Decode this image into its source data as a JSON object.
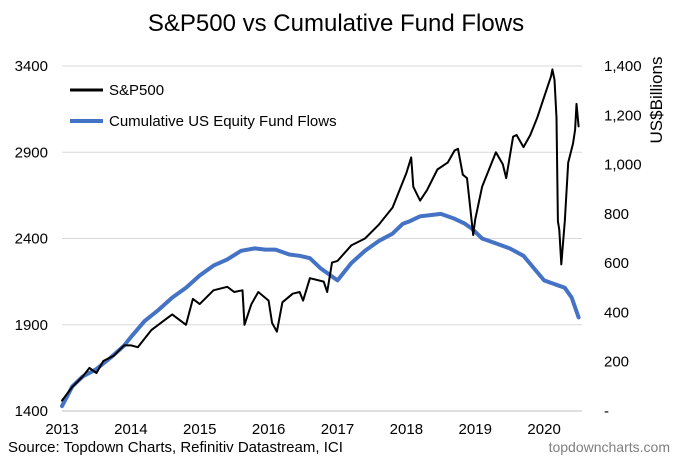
{
  "chart_data": {
    "type": "line",
    "title": "S&P500 vs Cumulative Fund Flows",
    "x": {
      "min": 2013.0,
      "max": 2020.55,
      "ticks": [
        2013,
        2014,
        2015,
        2016,
        2017,
        2018,
        2019,
        2020
      ],
      "tick_labels": [
        "2013",
        "2014",
        "2015",
        "2016",
        "2017",
        "2018",
        "2019",
        "2020"
      ]
    },
    "y_left": {
      "label": "",
      "min": 1400,
      "max": 3400,
      "ticks": [
        1400,
        1900,
        2400,
        2900,
        3400
      ],
      "tick_labels": [
        "1400",
        "1900",
        "2400",
        "2900",
        "3400"
      ]
    },
    "y_right": {
      "label": "US$Billions",
      "min": 0,
      "max": 1400,
      "ticks": [
        0,
        200,
        400,
        600,
        800,
        1000,
        1200,
        1400
      ],
      "tick_labels": [
        "-",
        "200",
        "400",
        "600",
        "800",
        "1,000",
        "1,200",
        "1,400"
      ]
    },
    "grid": true,
    "legend_position": "top-left",
    "series": [
      {
        "name": "S&P500",
        "axis": "left",
        "color": "#000000",
        "x": [
          2013.0,
          2013.15,
          2013.3,
          2013.4,
          2013.5,
          2013.6,
          2013.75,
          2013.9,
          2014.0,
          2014.1,
          2014.3,
          2014.5,
          2014.6,
          2014.8,
          2014.9,
          2015.0,
          2015.2,
          2015.4,
          2015.5,
          2015.62,
          2015.65,
          2015.75,
          2015.85,
          2016.0,
          2016.05,
          2016.12,
          2016.2,
          2016.35,
          2016.45,
          2016.5,
          2016.6,
          2016.8,
          2016.85,
          2016.92,
          2017.0,
          2017.2,
          2017.4,
          2017.6,
          2017.8,
          2018.0,
          2018.07,
          2018.1,
          2018.2,
          2018.3,
          2018.45,
          2018.6,
          2018.7,
          2018.75,
          2018.82,
          2018.88,
          2018.97,
          2019.0,
          2019.1,
          2019.2,
          2019.3,
          2019.4,
          2019.45,
          2019.55,
          2019.6,
          2019.7,
          2019.8,
          2019.9,
          2020.0,
          2020.1,
          2020.12,
          2020.15,
          2020.18,
          2020.2,
          2020.22,
          2020.25,
          2020.3,
          2020.35,
          2020.42,
          2020.45,
          2020.47,
          2020.5
        ],
        "values": [
          1460,
          1540,
          1600,
          1650,
          1620,
          1690,
          1720,
          1780,
          1780,
          1770,
          1870,
          1930,
          1960,
          1900,
          2050,
          2020,
          2100,
          2120,
          2090,
          2100,
          1900,
          2020,
          2090,
          2040,
          1910,
          1860,
          2030,
          2080,
          2090,
          2040,
          2170,
          2150,
          2090,
          2260,
          2270,
          2360,
          2400,
          2480,
          2580,
          2780,
          2870,
          2700,
          2620,
          2680,
          2800,
          2840,
          2910,
          2920,
          2770,
          2750,
          2420,
          2510,
          2700,
          2800,
          2900,
          2830,
          2750,
          2990,
          3000,
          2930,
          3000,
          3100,
          3220,
          3340,
          3380,
          3320,
          3100,
          2500,
          2450,
          2250,
          2500,
          2840,
          2950,
          3030,
          3180,
          3050
        ]
      },
      {
        "name": "Cumulative US Equity Fund Flows",
        "axis": "right",
        "color": "#4472C4",
        "x": [
          2013.0,
          2013.15,
          2013.3,
          2013.5,
          2013.7,
          2013.9,
          2014.0,
          2014.2,
          2014.4,
          2014.6,
          2014.8,
          2015.0,
          2015.2,
          2015.4,
          2015.6,
          2015.8,
          2015.95,
          2016.1,
          2016.3,
          2016.45,
          2016.6,
          2016.75,
          2016.85,
          2017.0,
          2017.2,
          2017.4,
          2017.6,
          2017.8,
          2017.95,
          2018.05,
          2018.2,
          2018.35,
          2018.5,
          2018.7,
          2018.85,
          2018.95,
          2019.1,
          2019.3,
          2019.5,
          2019.7,
          2019.85,
          2020.0,
          2020.1,
          2020.2,
          2020.3,
          2020.4,
          2020.5
        ],
        "values": [
          20,
          100,
          140,
          170,
          215,
          265,
          300,
          365,
          410,
          460,
          500,
          550,
          590,
          615,
          650,
          660,
          655,
          655,
          635,
          630,
          620,
          580,
          560,
          530,
          600,
          650,
          690,
          720,
          760,
          770,
          790,
          795,
          800,
          780,
          760,
          740,
          700,
          680,
          660,
          630,
          580,
          530,
          520,
          510,
          500,
          460,
          380
        ]
      }
    ],
    "annotations": {
      "source": "Source: Topdown Charts, Refinitiv Datastream, ICI",
      "watermark": "topdowncharts.com"
    }
  }
}
